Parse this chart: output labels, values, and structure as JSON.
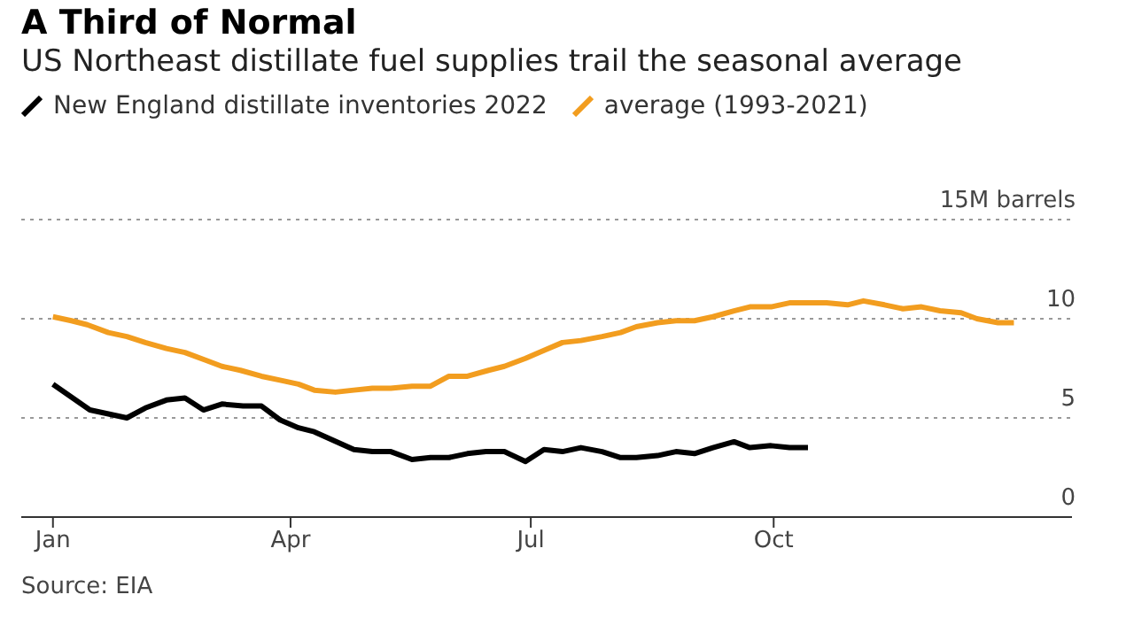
{
  "chart_data": {
    "type": "line",
    "title": "A Third of Normal",
    "subtitle": "US Northeast distillate fuel supplies trail the seasonal average",
    "annotations": [
      "Source: EIA"
    ],
    "legend": "top left",
    "grid": "y",
    "marker": "none",
    "line_style": "solid",
    "xlim": [
      "2021-12-20",
      "2023-01-22"
    ],
    "xticks": [
      {
        "value": "2022-01-01",
        "label": "Jan"
      },
      {
        "value": "2022-04-01",
        "label": "Apr"
      },
      {
        "value": "2022-07-01",
        "label": "Jul"
      },
      {
        "value": "2022-10-01",
        "label": "Oct"
      }
    ],
    "ylim": [
      0,
      15
    ],
    "yticks": [
      0,
      5,
      10,
      {
        "value": 15,
        "label": "15M barrels"
      }
    ],
    "series": [
      {
        "name": "New England distillate inventories 2022",
        "color": "#000000",
        "x": [
          "2022-01-01",
          "2022-01-15",
          "2022-01-29",
          "2022-02-05",
          "2022-02-13",
          "2022-02-20",
          "2022-02-27",
          "2022-03-06",
          "2022-03-14",
          "2022-03-21",
          "2022-03-28",
          "2022-04-04",
          "2022-04-10",
          "2022-04-25",
          "2022-05-02",
          "2022-05-09",
          "2022-05-17",
          "2022-05-24",
          "2022-05-31",
          "2022-06-07",
          "2022-06-14",
          "2022-06-21",
          "2022-06-29",
          "2022-07-06",
          "2022-07-13",
          "2022-07-20",
          "2022-07-28",
          "2022-08-04",
          "2022-08-10",
          "2022-08-18",
          "2022-08-25",
          "2022-09-01",
          "2022-09-08",
          "2022-09-16",
          "2022-09-22",
          "2022-09-30",
          "2022-10-07",
          "2022-10-14"
        ],
        "values": [
          6.7,
          5.4,
          5.0,
          5.5,
          5.9,
          6.0,
          5.4,
          5.7,
          5.6,
          5.6,
          4.9,
          4.5,
          4.3,
          3.4,
          3.3,
          3.3,
          2.9,
          3.0,
          3.0,
          3.2,
          3.3,
          3.3,
          2.8,
          3.4,
          3.3,
          3.5,
          3.3,
          3.0,
          3.0,
          3.1,
          3.3,
          3.2,
          3.5,
          3.8,
          3.5,
          3.6,
          3.5,
          3.5
        ]
      },
      {
        "name": "average (1993-2021)",
        "color": "#f29d1f",
        "x": [
          "2022-01-01",
          "2022-01-08",
          "2022-01-14",
          "2022-01-22",
          "2022-01-29",
          "2022-02-05",
          "2022-02-13",
          "2022-02-20",
          "2022-02-28",
          "2022-03-06",
          "2022-03-13",
          "2022-03-21",
          "2022-03-28",
          "2022-04-04",
          "2022-04-10",
          "2022-04-18",
          "2022-04-25",
          "2022-05-02",
          "2022-05-09",
          "2022-05-17",
          "2022-05-24",
          "2022-05-31",
          "2022-06-07",
          "2022-06-15",
          "2022-06-21",
          "2022-06-29",
          "2022-07-06",
          "2022-07-13",
          "2022-07-20",
          "2022-07-28",
          "2022-08-04",
          "2022-08-10",
          "2022-08-18",
          "2022-08-25",
          "2022-09-01",
          "2022-09-08",
          "2022-09-16",
          "2022-09-22",
          "2022-09-30",
          "2022-10-07",
          "2022-10-14",
          "2022-10-21",
          "2022-10-29",
          "2022-11-04",
          "2022-11-12",
          "2022-11-19",
          "2022-11-26",
          "2022-12-03",
          "2022-12-11",
          "2022-12-17",
          "2022-12-25",
          "2022-12-31"
        ],
        "values": [
          10.1,
          9.9,
          9.7,
          9.3,
          9.1,
          8.8,
          8.5,
          8.3,
          7.9,
          7.6,
          7.4,
          7.1,
          6.9,
          6.7,
          6.4,
          6.3,
          6.4,
          6.5,
          6.5,
          6.6,
          6.6,
          7.1,
          7.1,
          7.4,
          7.6,
          8.0,
          8.4,
          8.8,
          8.9,
          9.1,
          9.3,
          9.6,
          9.8,
          9.9,
          9.9,
          10.1,
          10.4,
          10.6,
          10.6,
          10.8,
          10.8,
          10.8,
          10.7,
          10.9,
          10.7,
          10.5,
          10.6,
          10.4,
          10.3,
          10.0,
          9.8,
          9.8
        ]
      }
    ]
  }
}
